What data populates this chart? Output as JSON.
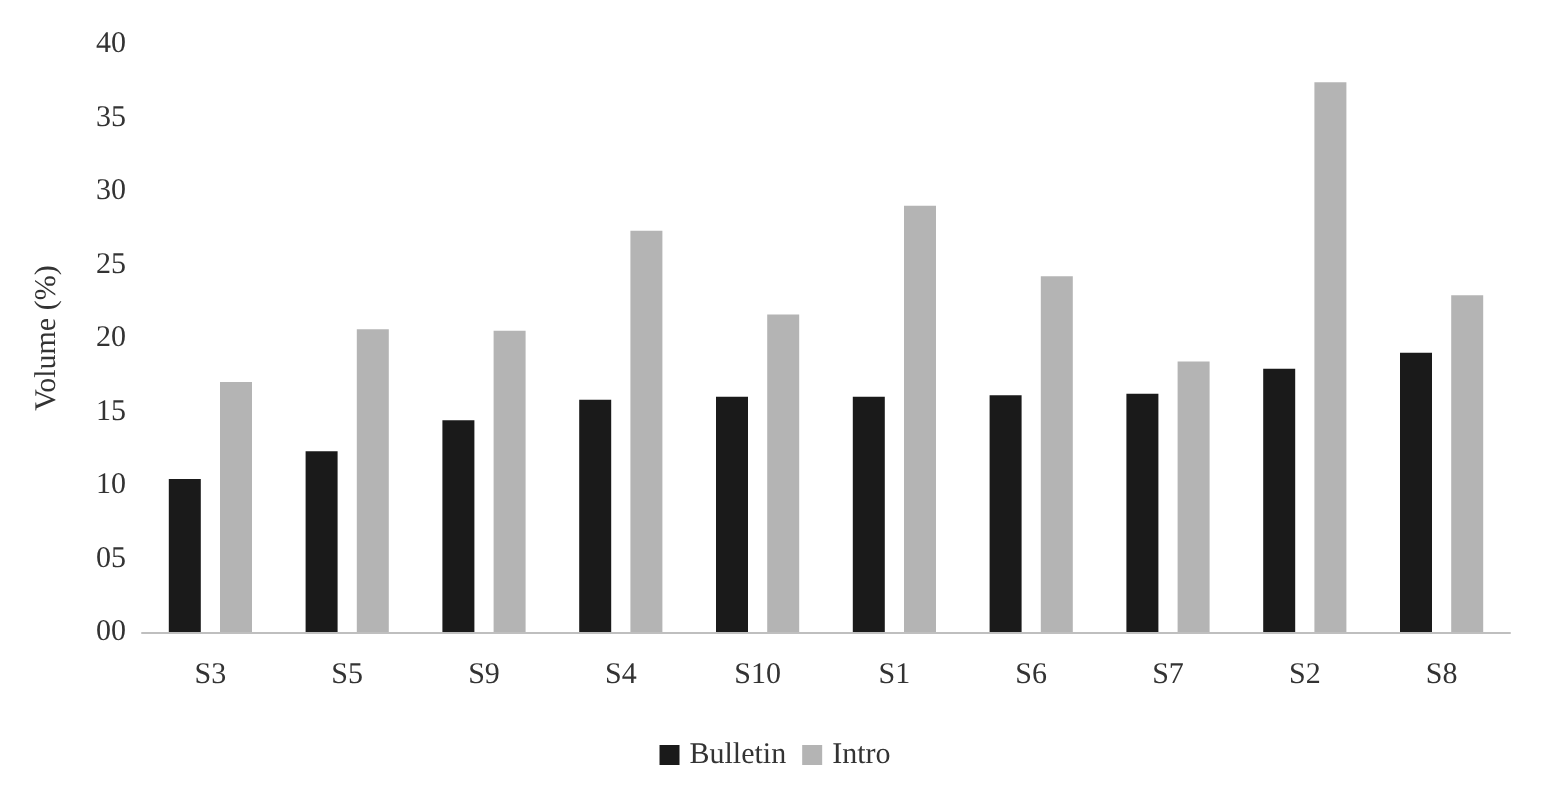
{
  "chart_data": {
    "type": "bar",
    "ylabel": "Volume (%)",
    "categories": [
      "S3",
      "S5",
      "S9",
      "S4",
      "S10",
      "S1",
      "S6",
      "S7",
      "S2",
      "S8"
    ],
    "series": [
      {
        "name": "Bulletin",
        "color": "#1a1a1a",
        "values": [
          10.4,
          12.3,
          14.4,
          15.8,
          16.0,
          16.0,
          16.1,
          16.2,
          17.9,
          19.0
        ]
      },
      {
        "name": "Intro",
        "color": "#b4b4b4",
        "values": [
          17.0,
          20.6,
          20.5,
          27.3,
          21.6,
          29.0,
          24.2,
          18.4,
          37.4,
          22.9
        ]
      }
    ],
    "ylim": [
      0,
      40
    ],
    "yticks": [
      {
        "value": 0,
        "label": "00"
      },
      {
        "value": 5,
        "label": "05"
      },
      {
        "value": 10,
        "label": "10"
      },
      {
        "value": 15,
        "label": "15"
      },
      {
        "value": 20,
        "label": "20"
      },
      {
        "value": 25,
        "label": "25"
      },
      {
        "value": 30,
        "label": "30"
      },
      {
        "value": 35,
        "label": "35"
      },
      {
        "value": 40,
        "label": "40"
      }
    ],
    "grid": false,
    "legend": "bottom"
  }
}
